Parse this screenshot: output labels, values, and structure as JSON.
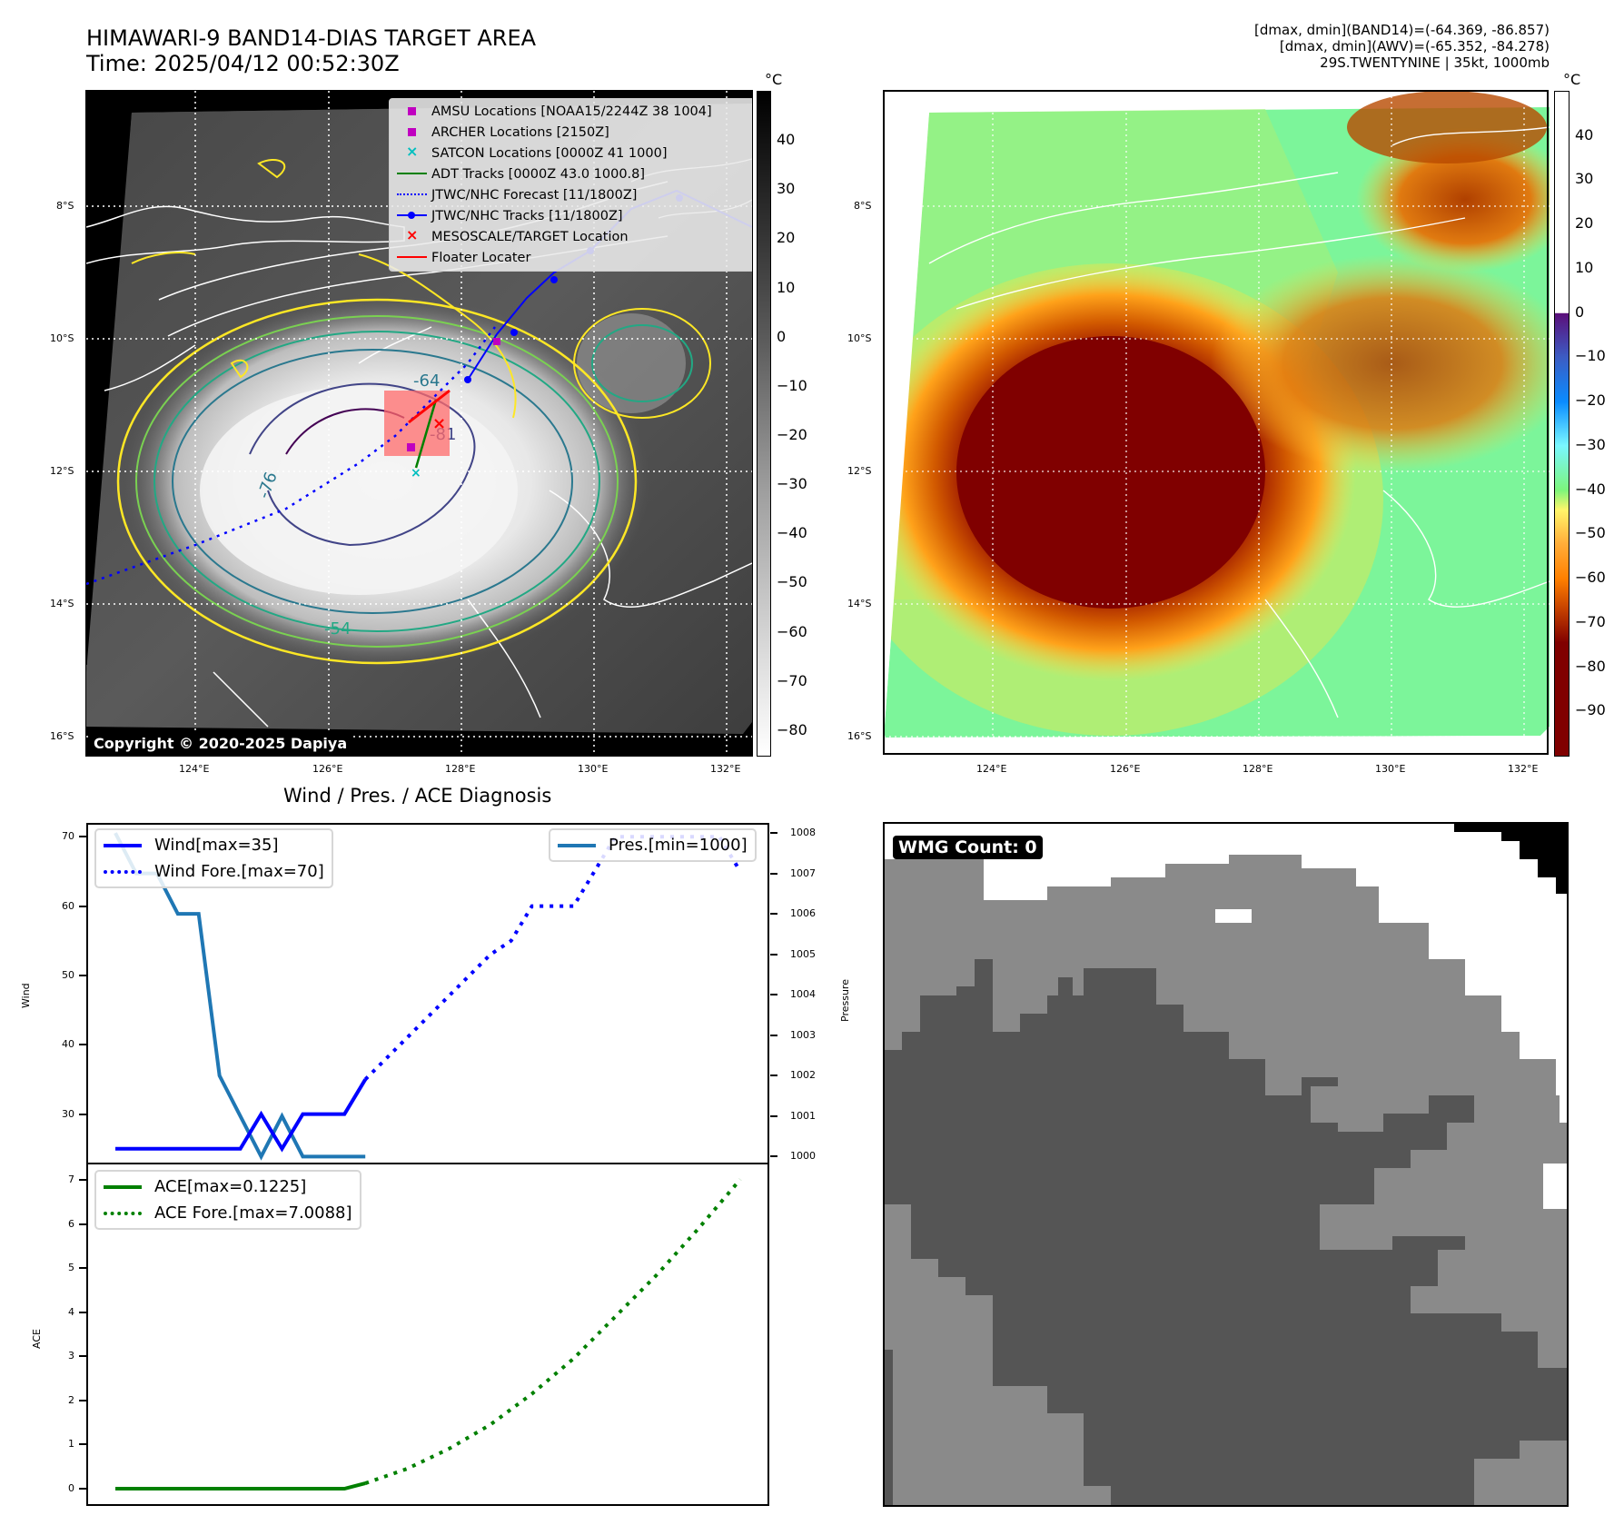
{
  "header": {
    "title": "HIMAWARI-9 BAND14-DIAS TARGET AREA",
    "time": "Time: 2025/04/12 00:52:30Z",
    "info_lines": [
      "[dmax, dmin](BAND14)=(-64.369, -86.857)",
      "[dmax, dmin](AWV)=(-65.352, -84.278)",
      "29S.TWENTYNINE | 35kt, 1000mb"
    ]
  },
  "maps": {
    "lat_ticks": [
      "8°S",
      "10°S",
      "12°S",
      "14°S",
      "16°S"
    ],
    "lon_ticks": [
      "124°E",
      "126°E",
      "128°E",
      "130°E",
      "132°E"
    ],
    "copyright": "Copyright © 2020-2025 Dapiya",
    "contour_labels": [
      "-64",
      "-81",
      "-76",
      "-54"
    ],
    "legend": [
      {
        "label": "AMSU Locations [NOAA15/2244Z 38 1004]",
        "symbol": "square",
        "color": "#c000c0"
      },
      {
        "label": "ARCHER Locations [2150Z]",
        "symbol": "square",
        "color": "#c000c0"
      },
      {
        "label": "SATCON Locations [0000Z 41 1000]",
        "symbol": "x",
        "color": "#00bfbf"
      },
      {
        "label": "ADT Tracks [0000Z 43.0 1000.8]",
        "symbol": "line",
        "color": "#008000"
      },
      {
        "label": "JTWC/NHC Forecast [11/1800Z]",
        "symbol": "dotted",
        "color": "#0000ff"
      },
      {
        "label": "JTWC/NHC Tracks [11/1800Z]",
        "symbol": "line-dot",
        "color": "#0000ff"
      },
      {
        "label": "MESOSCALE/TARGET Location",
        "symbol": "x",
        "color": "#ff0000"
      },
      {
        "label": "Floater Locater",
        "symbol": "line",
        "color": "#ff0000"
      }
    ],
    "left_colorbar": {
      "unit": "°C",
      "ticks": [
        "40",
        "30",
        "20",
        "10",
        "0",
        "−10",
        "−20",
        "−30",
        "−40",
        "−50",
        "−60",
        "−70",
        "−80"
      ],
      "range": [
        -85,
        50
      ]
    },
    "right_colorbar": {
      "unit": "°C",
      "ticks": [
        "40",
        "30",
        "20",
        "10",
        "0",
        "−10",
        "−20",
        "−30",
        "−40",
        "−50",
        "−60",
        "−70",
        "−80",
        "−90"
      ],
      "range": [
        -100,
        50
      ]
    }
  },
  "chart_data": [
    {
      "type": "line",
      "title": "Wind / Pres. / ACE Diagnosis",
      "ylabel": "Wind",
      "y2label": "Pressure",
      "ylim": [
        23,
        72
      ],
      "y2lim": [
        999.85,
        1008.25
      ],
      "yticks": [
        "30",
        "40",
        "50",
        "60",
        "70"
      ],
      "y2ticks": [
        "1000",
        "1001",
        "1002",
        "1003",
        "1004",
        "1005",
        "1006",
        "1007",
        "1008"
      ],
      "x": [
        0,
        1,
        2,
        3,
        4,
        5,
        6,
        7,
        8,
        9,
        10,
        11,
        12,
        13,
        14,
        15,
        16,
        17,
        18,
        19,
        20,
        21,
        22,
        23,
        24,
        25,
        26,
        27,
        28,
        29,
        30
      ],
      "series": [
        {
          "name": "Wind[max=35]",
          "axis": "left",
          "style": "solid",
          "color": "#0000ff",
          "x": [
            0,
            1,
            2,
            3,
            4,
            5,
            6,
            7,
            8,
            9,
            10,
            11,
            12
          ],
          "values": [
            25,
            25,
            25,
            25,
            25,
            25,
            25,
            30,
            25,
            30,
            30,
            30,
            35
          ]
        },
        {
          "name": "Wind Fore.[max=70]",
          "axis": "left",
          "style": "dotted",
          "color": "#0000ff",
          "x": [
            12,
            13,
            14,
            15,
            16,
            17,
            18,
            19,
            20,
            21,
            22,
            23,
            24,
            25,
            26,
            27,
            28,
            29,
            30
          ],
          "values": [
            35,
            38,
            41,
            44,
            47,
            50,
            53,
            55,
            60,
            60,
            60,
            65,
            70,
            70,
            70,
            70,
            70,
            70,
            65
          ]
        },
        {
          "name": "Pres.[min=1000]",
          "axis": "right",
          "style": "solid",
          "color": "#1f77b4",
          "x": [
            0,
            1,
            2,
            3,
            4,
            5,
            6,
            7,
            8,
            9,
            10,
            11,
            12
          ],
          "values": [
            1008,
            1007,
            1007,
            1006,
            1006,
            1002,
            1001,
            1000,
            1001,
            1000,
            1000,
            1000,
            1000
          ]
        }
      ]
    },
    {
      "type": "line",
      "ylabel": "ACE",
      "ylim": [
        -0.35,
        7.35
      ],
      "yticks": [
        "0",
        "1",
        "2",
        "3",
        "4",
        "5",
        "6",
        "7"
      ],
      "series": [
        {
          "name": "ACE[max=0.1225]",
          "style": "solid",
          "color": "#008000",
          "x": [
            0,
            1,
            2,
            3,
            4,
            5,
            6,
            7,
            8,
            9,
            10,
            11,
            12
          ],
          "values": [
            0,
            0,
            0,
            0,
            0,
            0,
            0,
            0,
            0,
            0,
            0,
            0,
            0.1225
          ]
        },
        {
          "name": "ACE Fore.[max=7.0088]",
          "style": "dotted",
          "color": "#008000",
          "x": [
            12,
            14,
            16,
            18,
            20,
            22,
            24,
            26,
            28,
            30
          ],
          "values": [
            0.1225,
            0.45,
            0.9,
            1.45,
            2.15,
            2.95,
            3.9,
            4.85,
            5.9,
            7.0088
          ]
        }
      ]
    }
  ],
  "wmg": {
    "label": "WMG Count: 0"
  }
}
